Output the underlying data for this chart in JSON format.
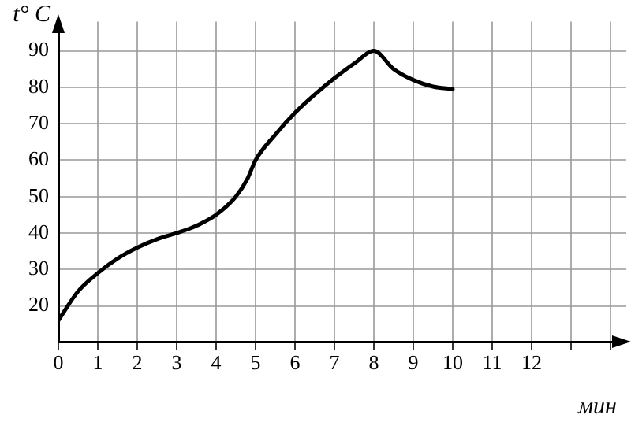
{
  "chart_data": {
    "type": "line",
    "xlabel": "мин",
    "ylabel": "t° C",
    "x": [
      0,
      0.5,
      1,
      1.5,
      2,
      2.5,
      3,
      3.5,
      4,
      4.5,
      4.8,
      5,
      5.5,
      6,
      6.5,
      7,
      7.5,
      8,
      8.5,
      9,
      9.5,
      10
    ],
    "series": [
      {
        "color": "#000000",
        "values": [
          16,
          24,
          29,
          33,
          36,
          38.3,
          40,
          42,
          45,
          50,
          55,
          60,
          67,
          73,
          78,
          82.5,
          86.5,
          90,
          85,
          82,
          80.2,
          79.5
        ]
      }
    ],
    "xlim": [
      0,
      14.4
    ],
    "xticks": [
      0,
      1,
      2,
      3,
      4,
      5,
      6,
      7,
      8,
      9,
      10,
      11,
      12,
      {
        "value": 13,
        "label": null
      },
      {
        "value": 14,
        "label": null
      }
    ],
    "ylim": [
      10,
      98
    ],
    "yticks": [
      20,
      30,
      40,
      50,
      60,
      70,
      80,
      90
    ],
    "grid": true,
    "marker": "none",
    "line_style": "solid",
    "legend": false
  }
}
